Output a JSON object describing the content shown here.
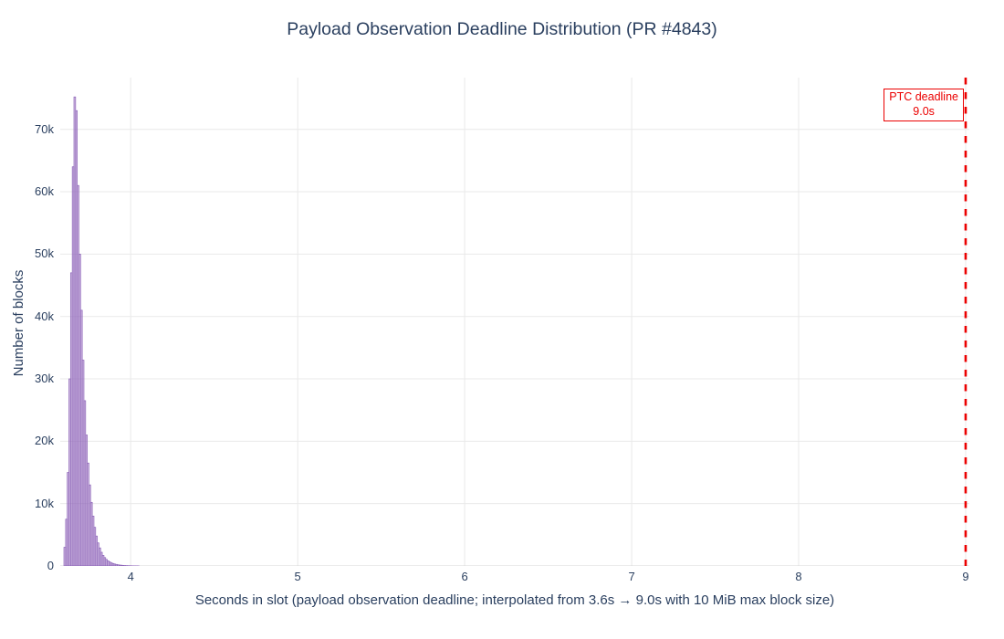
{
  "title": "Payload Observation Deadline Distribution (PR #4843)",
  "colors": {
    "text": "#2a3f5f",
    "bar_fill": "rgba(148,103,189,0.45)",
    "bar_edge": "#8c63b8",
    "grid": "#e9e9e9",
    "zeroline": "#d8d8d8",
    "deadline_red": "#eb0000"
  },
  "x_axis": {
    "title": "Seconds in slot (payload observation deadline; interpolated from 3.6s → 9.0s with 10 MiB max block size)",
    "tick_labels": [
      "4",
      "5",
      "6",
      "7",
      "8",
      "9"
    ],
    "tick_values": [
      4,
      5,
      6,
      7,
      8,
      9
    ],
    "range": [
      3.578,
      9.022
    ]
  },
  "y_axis": {
    "title": "Number of blocks",
    "tick_labels": [
      "0",
      "10k",
      "20k",
      "30k",
      "40k",
      "50k",
      "60k",
      "70k"
    ],
    "tick_values": [
      0,
      10000,
      20000,
      30000,
      40000,
      50000,
      60000,
      70000
    ],
    "range": [
      0,
      78300
    ]
  },
  "annotation": {
    "line1": "PTC deadline",
    "line2": "9.0s"
  },
  "chart_data": {
    "type": "bar",
    "subtype": "histogram",
    "title": "Payload Observation Deadline Distribution (PR #4843)",
    "xlabel": "Seconds in slot (payload observation deadline; interpolated from 3.6s → 9.0s with 10 MiB max block size)",
    "ylabel": "Number of blocks",
    "xlim": [
      3.578,
      9.022
    ],
    "ylim": [
      0,
      78300
    ],
    "grid": true,
    "bin_width": 0.01,
    "bin_starts": [
      3.6,
      3.61,
      3.62,
      3.63,
      3.64,
      3.65,
      3.66,
      3.67,
      3.68,
      3.69,
      3.7,
      3.71,
      3.72,
      3.73,
      3.74,
      3.75,
      3.76,
      3.77,
      3.78,
      3.79,
      3.8,
      3.81,
      3.82,
      3.83,
      3.84,
      3.85,
      3.86,
      3.87,
      3.88,
      3.89,
      3.9,
      3.91,
      3.92,
      3.93,
      3.94,
      3.95,
      3.96,
      3.97,
      3.98,
      3.99,
      4.0,
      4.01,
      4.02,
      4.03,
      4.04
    ],
    "counts": [
      3000,
      7500,
      15000,
      30000,
      47000,
      64000,
      75200,
      73000,
      61000,
      50000,
      41000,
      33000,
      26500,
      21000,
      16500,
      13000,
      10200,
      8000,
      6200,
      4800,
      3700,
      2900,
      2200,
      1700,
      1350,
      1050,
      820,
      640,
      500,
      400,
      310,
      250,
      190,
      150,
      120,
      90,
      70,
      55,
      45,
      35,
      28,
      22,
      17,
      13,
      10
    ],
    "deadline_line": {
      "x": 9.0,
      "style": "dashed",
      "color": "#eb0000",
      "label": "PTC deadline 9.0s"
    }
  }
}
